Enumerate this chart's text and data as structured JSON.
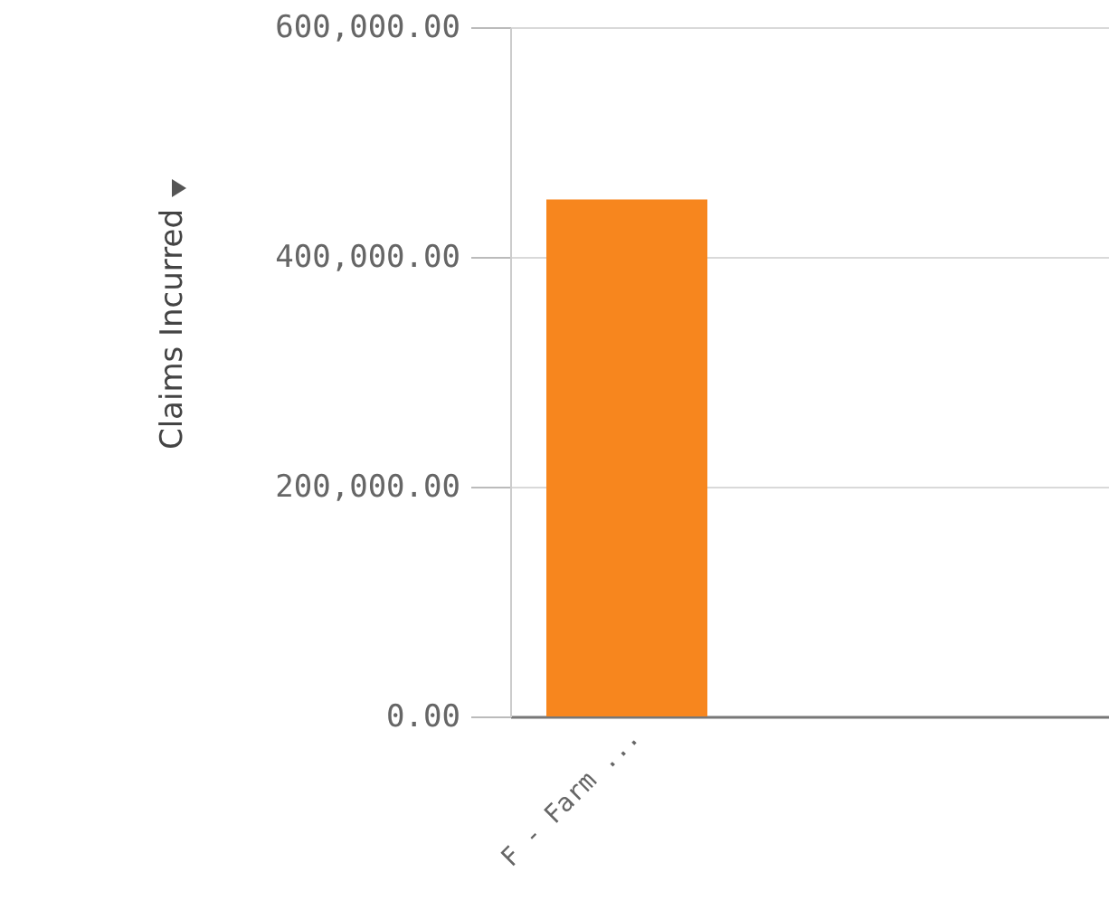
{
  "chart_data": {
    "type": "bar",
    "ylabel": "Claims Incurred",
    "categories": [
      "F - Farm ..."
    ],
    "values": [
      450000
    ],
    "color": "#f7861e",
    "ylim": [
      0,
      600000
    ],
    "yticks": [
      {
        "value": 0,
        "label": "0.00"
      },
      {
        "value": 200000,
        "label": "200,000.00"
      },
      {
        "value": 400000,
        "label": "400,000.00"
      },
      {
        "value": 600000,
        "label": "600,000.00"
      }
    ],
    "grid": "y"
  }
}
